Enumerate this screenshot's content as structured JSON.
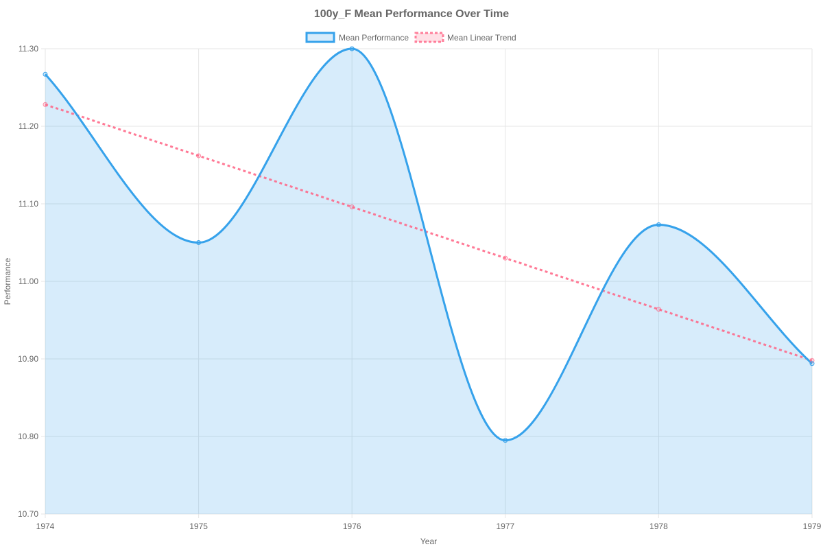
{
  "chart_data": {
    "type": "line",
    "title": "100y_F Mean Performance Over Time",
    "xlabel": "Year",
    "ylabel": "Performance",
    "categories": [
      "1974",
      "1975",
      "1976",
      "1977",
      "1978",
      "1979"
    ],
    "ylim": [
      10.7,
      11.3
    ],
    "yticks": [
      "10.70",
      "10.80",
      "10.90",
      "11.00",
      "11.10",
      "11.20",
      "11.30"
    ],
    "grid": true,
    "legend_position": "top-center",
    "series": [
      {
        "name": "Mean Performance",
        "values": [
          11.267,
          11.05,
          11.3,
          10.795,
          11.073,
          10.894
        ],
        "color": "#36a2eb",
        "fill": "rgba(54,162,235,0.2)",
        "style": "solid"
      },
      {
        "name": "Mean Linear Trend",
        "values": [
          11.228,
          11.162,
          11.096,
          11.03,
          10.964,
          10.898
        ],
        "color": "#ff6384",
        "style": "dashed"
      }
    ]
  }
}
